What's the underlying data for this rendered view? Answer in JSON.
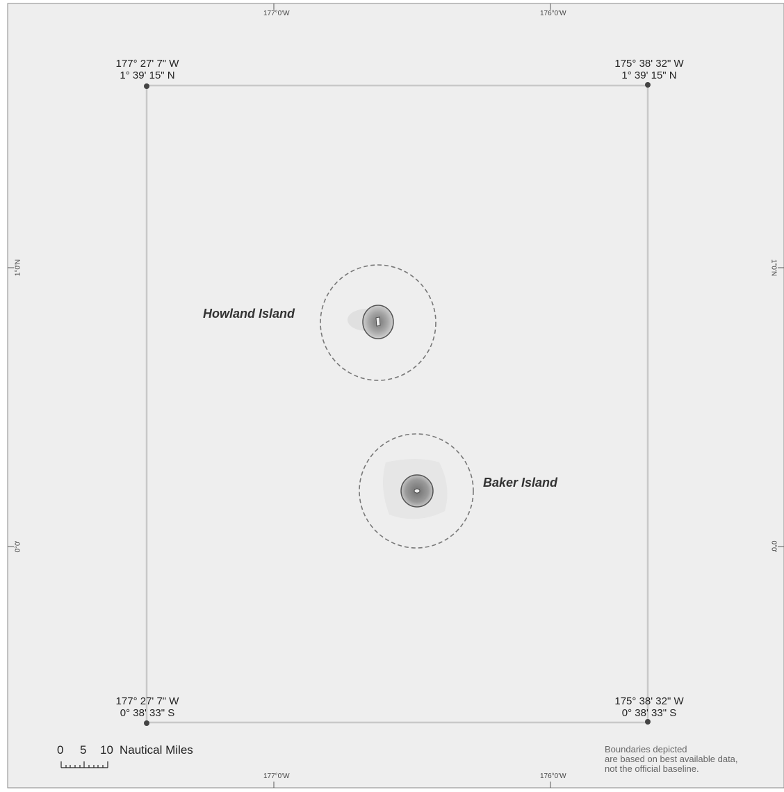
{
  "graticule": {
    "top_labels": [
      "177°0'W",
      "176°0'W"
    ],
    "bottom_labels": [
      "177°0'W",
      "176°0'W"
    ],
    "left_labels": [
      "1°0'N",
      "0°0'"
    ],
    "right_labels": [
      "1°0'N",
      "0°0'"
    ]
  },
  "corners": {
    "top_left": {
      "lon": "177° 27' 7\" W",
      "lat": "1° 39' 15\" N"
    },
    "top_right": {
      "lon": "175° 38' 32\" W",
      "lat": "1° 39' 15\" N"
    },
    "bottom_left": {
      "lon": "177° 27' 7\" W",
      "lat": "0° 38' 33\" S"
    },
    "bottom_right": {
      "lon": "175° 38' 32\" W",
      "lat": "0° 38' 33\" S"
    }
  },
  "islands": [
    {
      "name": "Howland Island"
    },
    {
      "name": "Baker Island"
    }
  ],
  "scale_bar": {
    "labels": [
      "0",
      "5",
      "10"
    ],
    "unit": "Nautical Miles"
  },
  "note": {
    "line1": "Boundaries depicted",
    "line2": "are based on best available data,",
    "line3": "not the official baseline."
  },
  "colors": {
    "background": "#eeeeee",
    "boundary": "#c8c8c8",
    "dashed_circle": "#777777",
    "vertex": "#444444"
  }
}
